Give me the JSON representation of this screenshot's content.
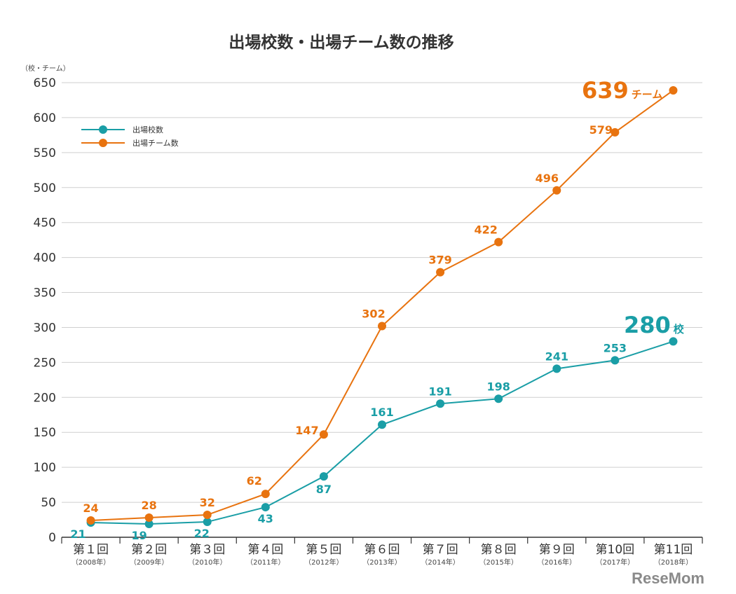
{
  "chart_data": {
    "type": "line",
    "title": "出場校数・出場チーム数の推移",
    "ylabel": "（校・チーム）",
    "xlabel": "",
    "ylim": [
      0,
      650
    ],
    "yticks": [
      0,
      50,
      100,
      150,
      200,
      250,
      300,
      350,
      400,
      450,
      500,
      550,
      600,
      650
    ],
    "grid": true,
    "legend_position": "top-left",
    "categories": [
      "第１回",
      "第２回",
      "第３回",
      "第４回",
      "第５回",
      "第６回",
      "第７回",
      "第８回",
      "第９回",
      "第10回",
      "第11回"
    ],
    "subcategories": [
      "（2008年）",
      "（2009年）",
      "（2010年）",
      "（2011年）",
      "（2012年）",
      "（2013年）",
      "（2014年）",
      "（2015年）",
      "（2016年）",
      "（2017年）",
      "（2018年）"
    ],
    "series": [
      {
        "name": "出場校数",
        "color": "#1a9ea6",
        "values": [
          21,
          19,
          22,
          43,
          87,
          161,
          191,
          198,
          241,
          253,
          280
        ]
      },
      {
        "name": "出場チーム数",
        "color": "#e8730f",
        "values": [
          24,
          28,
          32,
          62,
          147,
          302,
          379,
          422,
          496,
          579,
          639
        ]
      }
    ],
    "annotations": [
      {
        "value": "639",
        "unit": "チーム",
        "color": "#e8730f"
      },
      {
        "value": "280",
        "unit": "校",
        "color": "#1a9ea6"
      }
    ]
  },
  "logo": "ReseMom"
}
